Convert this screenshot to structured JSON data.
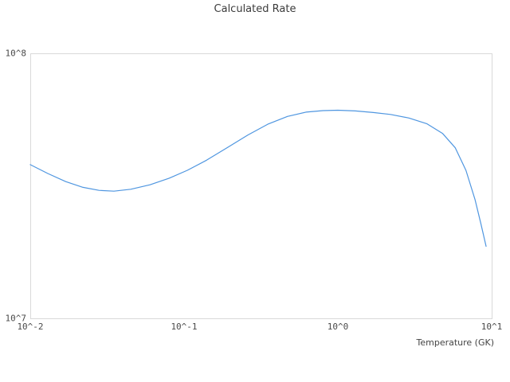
{
  "chart_data": {
    "type": "line",
    "title": "Calculated Rate",
    "xlabel": "Temperature (GK)",
    "ylabel": "",
    "x_scale": "log",
    "y_scale": "log",
    "xlim": [
      0.01,
      10
    ],
    "ylim": [
      10000000.0,
      100000000.0
    ],
    "grid": false,
    "legend_position": "none",
    "line_color": "#4f96e0",
    "axis_color": "#d9d9d9",
    "text_color": "#4a4a4a",
    "x_ticks": [
      {
        "value": 0.01,
        "label": "10^-2"
      },
      {
        "value": 0.1,
        "label": "10^-1"
      },
      {
        "value": 1,
        "label": "10^0"
      },
      {
        "value": 10,
        "label": "10^1"
      }
    ],
    "y_ticks": [
      {
        "value": 100000000.0,
        "label": "10^8"
      },
      {
        "value": 10000000.0,
        "label": "10^7"
      }
    ],
    "series": [
      {
        "name": "Calculated Rate",
        "points": [
          [
            0.01,
            38000000.0
          ],
          [
            0.013,
            35200000.0
          ],
          [
            0.017,
            32800000.0
          ],
          [
            0.022,
            31200000.0
          ],
          [
            0.028,
            30400000.0
          ],
          [
            0.035,
            30200000.0
          ],
          [
            0.045,
            30700000.0
          ],
          [
            0.06,
            31900000.0
          ],
          [
            0.08,
            33800000.0
          ],
          [
            0.105,
            36200000.0
          ],
          [
            0.14,
            39500000.0
          ],
          [
            0.19,
            44000000.0
          ],
          [
            0.26,
            49200000.0
          ],
          [
            0.35,
            54000000.0
          ],
          [
            0.47,
            57800000.0
          ],
          [
            0.62,
            60000000.0
          ],
          [
            0.8,
            60800000.0
          ],
          [
            1.0,
            61000000.0
          ],
          [
            1.3,
            60600000.0
          ],
          [
            1.7,
            59800000.0
          ],
          [
            2.2,
            58800000.0
          ],
          [
            2.9,
            57000000.0
          ],
          [
            3.8,
            54200000.0
          ],
          [
            4.8,
            49800000.0
          ],
          [
            5.8,
            44000000.0
          ],
          [
            6.8,
            36200000.0
          ],
          [
            7.8,
            28000000.0
          ],
          [
            8.5,
            22800000.0
          ],
          [
            9.2,
            18700000.0
          ]
        ]
      }
    ]
  }
}
